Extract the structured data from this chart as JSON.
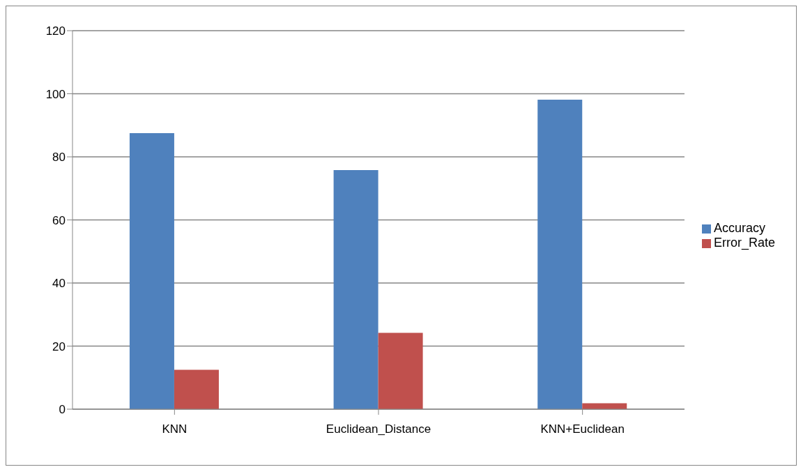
{
  "chart_data": {
    "type": "bar",
    "categories": [
      "KNN",
      "Euclidean_Distance",
      "KNN+Euclidean"
    ],
    "series": [
      {
        "name": "Accuracy",
        "color": "#4f81bd",
        "values": [
          87.5,
          75.8,
          98.1
        ]
      },
      {
        "name": "Error_Rate",
        "color": "#c0504d",
        "values": [
          12.5,
          24.2,
          1.9
        ]
      }
    ],
    "ylim": [
      0,
      120
    ],
    "yticks": [
      0,
      20,
      40,
      60,
      80,
      100,
      120
    ],
    "grid": "y",
    "legend": "right"
  }
}
